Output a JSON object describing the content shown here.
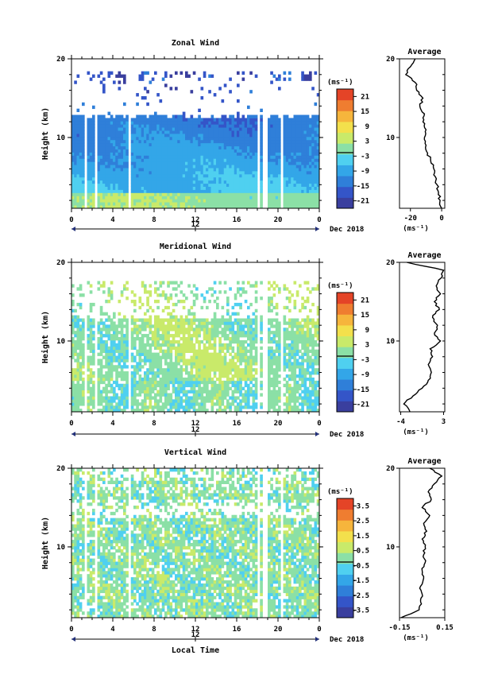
{
  "chart_data": [
    {
      "type": "heatmap",
      "title": "Zonal Wind",
      "ylabel": "Height (km)",
      "x_ticks": [
        "0",
        "4",
        "8",
        "12",
        "16",
        "20",
        "0"
      ],
      "x_range": [
        0,
        24
      ],
      "y_ticks": [
        "20",
        "10"
      ],
      "y_range": [
        1,
        20
      ],
      "date_axis": {
        "mark": "12",
        "label": "Dec 2018"
      },
      "colorbar": {
        "unit": "(ms⁻¹)",
        "ticks": [
          "21",
          "15",
          "9",
          "3",
          "-3",
          "-9",
          "-15",
          "-21"
        ],
        "range": [
          -24,
          24
        ]
      },
      "profile": {
        "title": "Average",
        "unit": "(ms⁻¹)",
        "x_ticks": [
          "-20",
          "0"
        ],
        "x_range": [
          -27,
          2
        ],
        "y_ticks": [
          "20",
          "10"
        ],
        "points": [
          [
            0,
            1
          ],
          [
            -1,
            2
          ],
          [
            -2,
            3
          ],
          [
            -3,
            4
          ],
          [
            -4,
            5
          ],
          [
            -5,
            6
          ],
          [
            -7,
            7
          ],
          [
            -9,
            8
          ],
          [
            -10,
            9
          ],
          [
            -11,
            10
          ],
          [
            -10,
            11
          ],
          [
            -12,
            12
          ],
          [
            -11,
            13
          ],
          [
            -14,
            14
          ],
          [
            -12,
            15
          ],
          [
            -16,
            16
          ],
          [
            -17,
            17
          ],
          [
            -23,
            18
          ],
          [
            -20,
            19
          ],
          [
            -17,
            20
          ]
        ]
      }
    },
    {
      "type": "heatmap",
      "title": "Meridional Wind",
      "ylabel": "Height (km)",
      "x_ticks": [
        "0",
        "4",
        "8",
        "12",
        "16",
        "20",
        "0"
      ],
      "x_range": [
        0,
        24
      ],
      "y_ticks": [
        "20",
        "10"
      ],
      "y_range": [
        1,
        20
      ],
      "date_axis": {
        "mark": "12",
        "label": "Dec 2018"
      },
      "colorbar": {
        "unit": "(ms⁻¹)",
        "ticks": [
          "21",
          "15",
          "9",
          "3",
          "-3",
          "-9",
          "-15",
          "-21"
        ],
        "range": [
          -24,
          24
        ]
      },
      "profile": {
        "title": "Average",
        "unit": "(ms⁻¹)",
        "x_ticks": [
          "-4",
          "3"
        ],
        "x_range": [
          -4.2,
          3.2
        ],
        "y_ticks": [
          "20",
          "10"
        ],
        "points": [
          [
            -2.5,
            1
          ],
          [
            -3.5,
            2
          ],
          [
            -2,
            3
          ],
          [
            -0.5,
            4
          ],
          [
            0.5,
            5
          ],
          [
            1,
            6
          ],
          [
            0.5,
            7
          ],
          [
            1.2,
            8
          ],
          [
            0.8,
            9
          ],
          [
            2.5,
            10
          ],
          [
            1.5,
            11
          ],
          [
            2,
            12
          ],
          [
            1.2,
            13
          ],
          [
            2.3,
            14
          ],
          [
            1.5,
            15
          ],
          [
            2.5,
            16
          ],
          [
            1.8,
            17
          ],
          [
            2.6,
            18
          ],
          [
            3,
            19
          ],
          [
            -3,
            20
          ]
        ]
      }
    },
    {
      "type": "heatmap",
      "title": "Vertical Wind",
      "ylabel": "Height (km)",
      "xlabel": "Local Time",
      "x_ticks": [
        "0",
        "4",
        "8",
        "12",
        "16",
        "20",
        "0"
      ],
      "x_range": [
        0,
        24
      ],
      "y_ticks": [
        "20",
        "10"
      ],
      "y_range": [
        1,
        20
      ],
      "date_axis": {
        "mark": "12",
        "label": "Dec 2018"
      },
      "colorbar": {
        "unit": "(ms⁻¹)",
        "ticks": [
          "3.5",
          "2.5",
          "1.5",
          "0.5",
          "-0.5",
          "-1.5",
          "-2.5",
          "-3.5"
        ],
        "range": [
          -4,
          4
        ]
      },
      "profile": {
        "title": "Average",
        "unit": "(ms⁻¹)",
        "x_ticks": [
          "-0.15",
          "0.15"
        ],
        "x_range": [
          -0.15,
          0.15
        ],
        "y_ticks": [
          "20",
          "10"
        ],
        "points": [
          [
            -0.14,
            1
          ],
          [
            -0.02,
            2
          ],
          [
            -0.01,
            3
          ],
          [
            0.0,
            4
          ],
          [
            -0.01,
            5
          ],
          [
            0.01,
            6
          ],
          [
            0.0,
            7
          ],
          [
            0.02,
            8
          ],
          [
            0.01,
            9
          ],
          [
            0.02,
            10
          ],
          [
            0.0,
            11
          ],
          [
            0.03,
            12
          ],
          [
            0.01,
            13
          ],
          [
            0.05,
            14
          ],
          [
            0.0,
            15
          ],
          [
            0.06,
            16
          ],
          [
            0.04,
            17
          ],
          [
            0.08,
            18
          ],
          [
            0.13,
            19
          ],
          [
            0.05,
            20
          ]
        ]
      }
    }
  ]
}
